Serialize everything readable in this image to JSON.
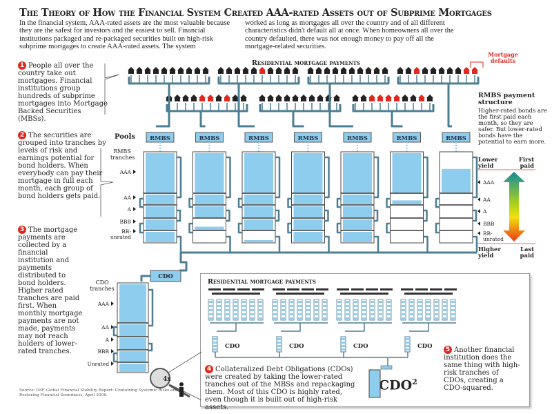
{
  "title": "The Theory of How the Financial System Created AAA-rated Assets out of Subprime Mortgages",
  "intro_left": "In the financial system, AAA-rated assets are the most valuable because they are the safest for investors and the easiest to sell. Financial institutions packaged and re-packaged securities built on high-risk subprime mortgages to create AAA-rated assets. The system",
  "intro_right": "worked as long as mortgages all over the country and of all different characteristics didn't default all at once.  When homeowners all over the country defaulted, there was not enough money to pay off all the mortgage-related securities.",
  "notes": [
    {
      "num": "1",
      "text": "People all over the country take out mortgages. Financial institutions group hundreds of subprime mortgages into Mortgage Backed Securities (MBSs)."
    },
    {
      "num": "2",
      "text": "The securities are grouped into tranches by levels of risk and earnings potential for bond holders. When everybody can pay their mortgage in full each month, each group of bond holders gets paid."
    },
    {
      "num": "3",
      "text": "The mortgage payments are collected by a financial institution and payments distributed to bond holders. Higher rated tranches are paid first. When monthly mortgage payments are not made, payments may not reach holders of lower-rated tranches."
    },
    {
      "num": "4",
      "text": "Collateralized Debt Obligations (CDOs) were created by taking the lower-rated tranches out of the MBSs and repackaging them. Most of this CDO is highly rated, even though it is built out of high-risk assets."
    },
    {
      "num": "5",
      "text": "Another financial institution does the same thing with high-risk tranches of CDOs, creating a CDO-squared."
    }
  ],
  "diagram": {
    "payments_heading": "Residential mortgage payments",
    "mortgage_defaults": "Mortgage defaults",
    "pools_label": "Pools",
    "rmbs_tranches_label": "RMBS tranches",
    "pool_label": "RMBS",
    "tranches": [
      "AAA",
      "AA",
      "A",
      "BBB",
      "BB-unrated"
    ],
    "house_rows": [
      [
        [
          0,
          0,
          0,
          0,
          0,
          0,
          0,
          0,
          0,
          0
        ],
        [
          0,
          0,
          0,
          0,
          0,
          1,
          0,
          0,
          0,
          0
        ],
        [
          0,
          0,
          0,
          0,
          0,
          0,
          0,
          0,
          0,
          0
        ],
        [
          0,
          0,
          1,
          0,
          0,
          0,
          0,
          0,
          1,
          1
        ]
      ],
      [
        [
          0,
          0,
          0,
          0,
          1,
          1,
          0,
          1,
          0,
          0
        ],
        [
          0,
          0,
          0,
          0,
          0,
          0,
          0,
          0,
          0,
          0
        ],
        [
          0,
          0,
          1,
          1,
          1,
          1,
          0,
          0,
          1,
          0
        ]
      ]
    ],
    "tank_fill": [
      [
        1,
        1,
        1,
        1,
        1
      ],
      [
        1,
        1,
        1,
        0.3,
        0
      ],
      [
        1,
        1,
        1,
        1,
        0.2
      ],
      [
        1,
        1,
        1,
        1,
        1
      ],
      [
        1,
        1,
        1,
        1,
        1
      ],
      [
        1,
        0.4,
        0,
        0,
        0
      ],
      [
        0.6,
        0,
        0,
        0,
        0
      ]
    ],
    "cdo_label": "CDO",
    "cdo_tranches_label": "CDO tranches",
    "cdo_tranches": [
      "AAA",
      "AA",
      "A",
      "BBB",
      "Unrated"
    ],
    "cdo_fill": [
      1,
      1,
      1,
      1,
      1
    ],
    "magnifier": "4x",
    "cdo_group_label": "CDO",
    "cdo_squared": "CDO",
    "cdo_squared_sup": "2",
    "water_color": "#8fcdee",
    "pipe_color": "#4d7d92",
    "default_color": "#e0281e"
  },
  "structure": {
    "heading": "RMBS payment structure",
    "text": "Higher-rated bonds are the first paid each month, so they are safer. But lower-rated bonds have the potential to earn more.",
    "lower_yield": "Lower yield",
    "first_paid": "First paid",
    "higher_yield": "Higher yield",
    "last_paid": "Last paid",
    "tranches": [
      "AAA",
      "AA",
      "A",
      "BBB",
      "BB-unrated"
    ]
  },
  "source": "Source: IMF Global Financial Stability Report: Containing Systemic Risks and Restoring Financial Soundness, April 2008."
}
